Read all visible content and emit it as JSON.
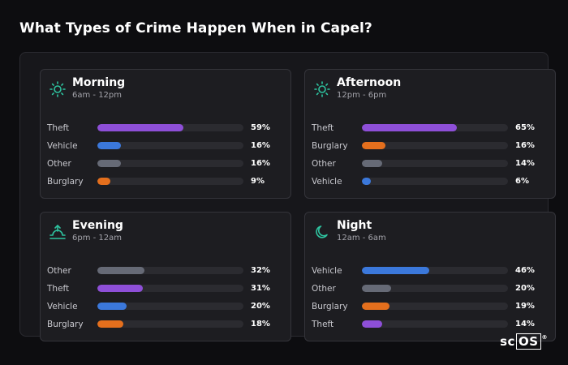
{
  "page": {
    "title": "What Types of Crime Happen When in Capel?"
  },
  "colors": {
    "theft": "#8e4fd8",
    "vehicle": "#3b78db",
    "other": "#666a76",
    "burglary": "#e46f1d",
    "icon_accent": "#2ec4a0"
  },
  "cards": [
    {
      "title": "Morning",
      "time": "6am - 12pm",
      "icon": "sun-icon",
      "rows": [
        {
          "label": "Theft",
          "value": "59%",
          "pct": 59,
          "color": "#8e4fd8"
        },
        {
          "label": "Vehicle",
          "value": "16%",
          "pct": 16,
          "color": "#3b78db"
        },
        {
          "label": "Other",
          "value": "16%",
          "pct": 16,
          "color": "#666a76"
        },
        {
          "label": "Burglary",
          "value": "9%",
          "pct": 9,
          "color": "#e46f1d"
        }
      ]
    },
    {
      "title": "Afternoon",
      "time": "12pm - 6pm",
      "icon": "sun-icon",
      "rows": [
        {
          "label": "Theft",
          "value": "65%",
          "pct": 65,
          "color": "#8e4fd8"
        },
        {
          "label": "Burglary",
          "value": "16%",
          "pct": 16,
          "color": "#e46f1d"
        },
        {
          "label": "Other",
          "value": "14%",
          "pct": 14,
          "color": "#666a76"
        },
        {
          "label": "Vehicle",
          "value": "6%",
          "pct": 6,
          "color": "#3b78db"
        }
      ]
    },
    {
      "title": "Evening",
      "time": "6pm - 12am",
      "icon": "sunset-icon",
      "rows": [
        {
          "label": "Other",
          "value": "32%",
          "pct": 32,
          "color": "#666a76"
        },
        {
          "label": "Theft",
          "value": "31%",
          "pct": 31,
          "color": "#8e4fd8"
        },
        {
          "label": "Vehicle",
          "value": "20%",
          "pct": 20,
          "color": "#3b78db"
        },
        {
          "label": "Burglary",
          "value": "18%",
          "pct": 18,
          "color": "#e46f1d"
        }
      ]
    },
    {
      "title": "Night",
      "time": "12am - 6am",
      "icon": "moon-icon",
      "rows": [
        {
          "label": "Vehicle",
          "value": "46%",
          "pct": 46,
          "color": "#3b78db"
        },
        {
          "label": "Other",
          "value": "20%",
          "pct": 20,
          "color": "#666a76"
        },
        {
          "label": "Burglary",
          "value": "19%",
          "pct": 19,
          "color": "#e46f1d"
        },
        {
          "label": "Theft",
          "value": "14%",
          "pct": 14,
          "color": "#8e4fd8"
        }
      ]
    }
  ],
  "brand": {
    "prefix": "sc",
    "boxed": "OS",
    "mark": "®"
  }
}
